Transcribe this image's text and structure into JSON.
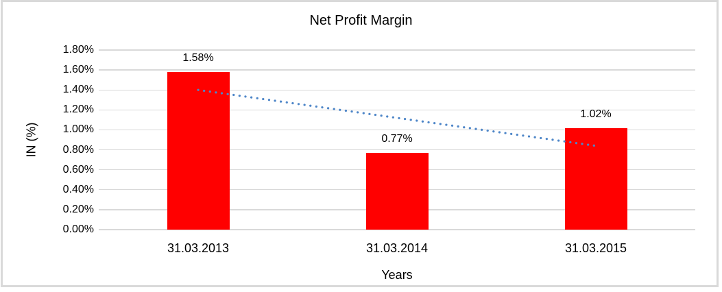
{
  "chart_data": {
    "type": "bar",
    "title": "Net Profit Margin",
    "xlabel": "Years",
    "ylabel": "IN (%)",
    "categories": [
      "31.03.2013",
      "31.03.2014",
      "31.03.2015"
    ],
    "values": [
      1.58,
      0.77,
      1.02
    ],
    "value_labels": [
      "1.58%",
      "0.77%",
      "1.02%"
    ],
    "ylim": [
      0,
      1.8
    ],
    "ytick_step": 0.2,
    "ytick_labels": [
      "0.00%",
      "0.20%",
      "0.40%",
      "0.60%",
      "0.80%",
      "1.00%",
      "1.20%",
      "1.40%",
      "1.60%",
      "1.80%"
    ],
    "grid": true,
    "legend": "none",
    "bar_color": "#ff0000",
    "label_color": "#000000",
    "gridline_color": "#d9d9d9",
    "frame_color": "#d9d9d9",
    "trendline": {
      "kind": "linear",
      "style": "dotted",
      "color": "#4e86c8",
      "start_value": 1.4,
      "end_value": 0.84
    }
  }
}
